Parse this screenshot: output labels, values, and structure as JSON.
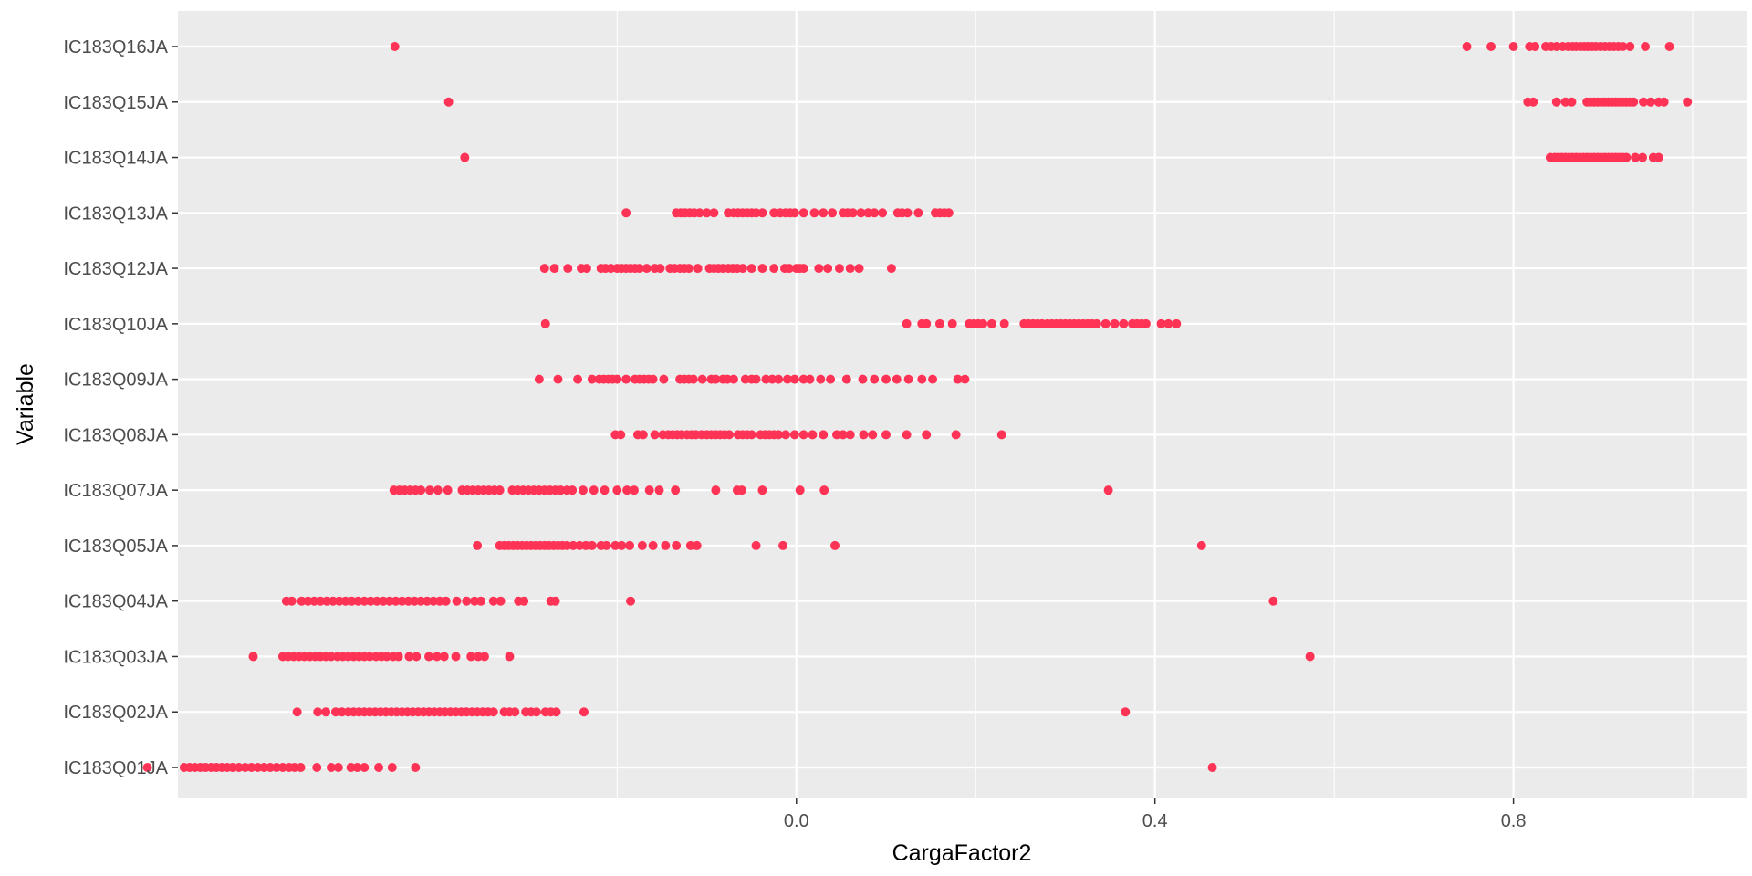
{
  "chart_data": {
    "type": "scatter",
    "title": "",
    "xlabel": "CargaFactor2",
    "ylabel": "Variable",
    "xlim": [
      -0.69,
      1.06
    ],
    "x_ticks": [
      {
        "value": 0.0,
        "label": "0.0"
      },
      {
        "value": 0.4,
        "label": "0.4"
      },
      {
        "value": 0.8,
        "label": "0.8"
      }
    ],
    "x_minor": [
      -0.2,
      0.2,
      0.6,
      1.0
    ],
    "categories": [
      "IC183Q01JA",
      "IC183Q02JA",
      "IC183Q03JA",
      "IC183Q04JA",
      "IC183Q05JA",
      "IC183Q07JA",
      "IC183Q08JA",
      "IC183Q09JA",
      "IC183Q10JA",
      "IC183Q12JA",
      "IC183Q13JA",
      "IC183Q14JA",
      "IC183Q15JA",
      "IC183Q16JA"
    ],
    "grid": true,
    "legend": "none",
    "colors": {
      "point": "#ff3355",
      "panel": "#ebebeb",
      "grid": "#ffffff"
    },
    "points": {
      "IC183Q16JA": [
        -0.448,
        0.748,
        0.775,
        0.8,
        0.818,
        0.824,
        0.836,
        0.842,
        0.848,
        0.855,
        0.861,
        0.866,
        0.87,
        0.875,
        0.879,
        0.883,
        0.888,
        0.892,
        0.897,
        0.902,
        0.907,
        0.912,
        0.917,
        0.922,
        0.93,
        0.947,
        0.974
      ],
      "IC183Q15JA": [
        -0.388,
        0.816,
        0.822,
        0.848,
        0.858,
        0.865,
        0.882,
        0.886,
        0.89,
        0.894,
        0.898,
        0.902,
        0.906,
        0.91,
        0.914,
        0.918,
        0.922,
        0.926,
        0.93,
        0.934,
        0.945,
        0.953,
        0.962,
        0.968,
        0.994
      ],
      "IC183Q14JA": [
        -0.37,
        0.841,
        0.846,
        0.85,
        0.854,
        0.858,
        0.862,
        0.866,
        0.87,
        0.874,
        0.878,
        0.882,
        0.886,
        0.89,
        0.894,
        0.898,
        0.902,
        0.906,
        0.91,
        0.914,
        0.918,
        0.922,
        0.926,
        0.936,
        0.944,
        0.956,
        0.962
      ],
      "IC183Q13JA": [
        -0.19,
        -0.134,
        -0.129,
        -0.124,
        -0.119,
        -0.114,
        -0.108,
        -0.1,
        -0.092,
        -0.076,
        -0.07,
        -0.065,
        -0.06,
        -0.055,
        -0.05,
        -0.045,
        -0.038,
        -0.025,
        -0.018,
        -0.012,
        -0.007,
        -0.002,
        0.008,
        0.02,
        0.03,
        0.04,
        0.052,
        0.057,
        0.063,
        0.072,
        0.08,
        0.087,
        0.096,
        0.113,
        0.118,
        0.124,
        0.136,
        0.155,
        0.16,
        0.165,
        0.17
      ],
      "IC183Q12JA": [
        -0.281,
        -0.27,
        -0.255,
        -0.24,
        -0.234,
        -0.218,
        -0.213,
        -0.207,
        -0.2,
        -0.195,
        -0.19,
        -0.185,
        -0.18,
        -0.175,
        -0.167,
        -0.158,
        -0.152,
        -0.141,
        -0.136,
        -0.13,
        -0.125,
        -0.12,
        -0.11,
        -0.097,
        -0.092,
        -0.087,
        -0.082,
        -0.076,
        -0.071,
        -0.066,
        -0.06,
        -0.05,
        -0.038,
        -0.025,
        -0.013,
        -0.008,
        0.0,
        0.004,
        0.008,
        0.025,
        0.035,
        0.048,
        0.06,
        0.07,
        0.106
      ],
      "IC183Q10JA": [
        -0.28,
        0.123,
        0.14,
        0.145,
        0.16,
        0.174,
        0.193,
        0.198,
        0.203,
        0.208,
        0.218,
        0.232,
        0.254,
        0.259,
        0.264,
        0.269,
        0.274,
        0.28,
        0.285,
        0.29,
        0.295,
        0.3,
        0.305,
        0.31,
        0.315,
        0.32,
        0.325,
        0.33,
        0.335,
        0.345,
        0.355,
        0.365,
        0.375,
        0.38,
        0.385,
        0.39,
        0.407,
        0.415,
        0.424
      ],
      "IC183Q09JA": [
        -0.287,
        -0.266,
        -0.244,
        -0.228,
        -0.22,
        -0.215,
        -0.21,
        -0.205,
        -0.2,
        -0.19,
        -0.18,
        -0.175,
        -0.17,
        -0.165,
        -0.16,
        -0.148,
        -0.13,
        -0.125,
        -0.12,
        -0.115,
        -0.105,
        -0.095,
        -0.09,
        -0.082,
        -0.077,
        -0.07,
        -0.057,
        -0.05,
        -0.045,
        -0.034,
        -0.027,
        -0.02,
        -0.01,
        -0.002,
        0.008,
        0.015,
        0.027,
        0.038,
        0.056,
        0.074,
        0.087,
        0.1,
        0.112,
        0.125,
        0.14,
        0.152,
        0.18,
        0.188
      ],
      "IC183Q08JA": [
        -0.202,
        -0.196,
        -0.177,
        -0.171,
        -0.158,
        -0.149,
        -0.143,
        -0.138,
        -0.133,
        -0.128,
        -0.122,
        -0.117,
        -0.112,
        -0.106,
        -0.1,
        -0.095,
        -0.09,
        -0.085,
        -0.08,
        -0.075,
        -0.065,
        -0.06,
        -0.055,
        -0.05,
        -0.04,
        -0.035,
        -0.03,
        -0.025,
        -0.02,
        -0.012,
        -0.002,
        0.008,
        0.018,
        0.03,
        0.045,
        0.052,
        0.06,
        0.075,
        0.085,
        0.1,
        0.123,
        0.145,
        0.178,
        0.229
      ],
      "IC183Q07JA": [
        -0.449,
        -0.443,
        -0.437,
        -0.431,
        -0.425,
        -0.419,
        -0.409,
        -0.4,
        -0.389,
        -0.373,
        -0.367,
        -0.361,
        -0.355,
        -0.349,
        -0.343,
        -0.337,
        -0.331,
        -0.317,
        -0.311,
        -0.305,
        -0.299,
        -0.293,
        -0.287,
        -0.281,
        -0.275,
        -0.269,
        -0.263,
        -0.256,
        -0.25,
        -0.238,
        -0.226,
        -0.214,
        -0.2,
        -0.189,
        -0.181,
        -0.164,
        -0.153,
        -0.135,
        -0.09,
        -0.066,
        -0.061,
        -0.038,
        0.004,
        0.031,
        0.348
      ],
      "IC183Q05JA": [
        -0.356,
        -0.331,
        -0.326,
        -0.321,
        -0.316,
        -0.311,
        -0.306,
        -0.301,
        -0.296,
        -0.291,
        -0.286,
        -0.281,
        -0.276,
        -0.271,
        -0.266,
        -0.261,
        -0.256,
        -0.249,
        -0.242,
        -0.235,
        -0.228,
        -0.218,
        -0.212,
        -0.202,
        -0.195,
        -0.186,
        -0.172,
        -0.16,
        -0.146,
        -0.134,
        -0.118,
        -0.111,
        -0.045,
        -0.015,
        0.043,
        0.452
      ],
      "IC183Q04JA": [
        -0.569,
        -0.563,
        -0.552,
        -0.545,
        -0.538,
        -0.531,
        -0.524,
        -0.517,
        -0.51,
        -0.503,
        -0.496,
        -0.489,
        -0.482,
        -0.475,
        -0.468,
        -0.461,
        -0.454,
        -0.447,
        -0.44,
        -0.433,
        -0.426,
        -0.419,
        -0.412,
        -0.405,
        -0.398,
        -0.391,
        -0.379,
        -0.368,
        -0.359,
        -0.352,
        -0.338,
        -0.33,
        -0.31,
        -0.304,
        -0.274,
        -0.269,
        -0.185,
        0.532
      ],
      "IC183Q03JA": [
        -0.606,
        -0.573,
        -0.567,
        -0.561,
        -0.555,
        -0.549,
        -0.543,
        -0.537,
        -0.531,
        -0.525,
        -0.519,
        -0.512,
        -0.506,
        -0.5,
        -0.494,
        -0.488,
        -0.482,
        -0.476,
        -0.469,
        -0.463,
        -0.457,
        -0.45,
        -0.444,
        -0.432,
        -0.424,
        -0.41,
        -0.401,
        -0.393,
        -0.38,
        -0.363,
        -0.355,
        -0.348,
        -0.32,
        0.573
      ],
      "IC183Q02JA": [
        -0.557,
        -0.534,
        -0.525,
        -0.514,
        -0.507,
        -0.5,
        -0.494,
        -0.488,
        -0.482,
        -0.476,
        -0.47,
        -0.464,
        -0.458,
        -0.452,
        -0.446,
        -0.44,
        -0.434,
        -0.428,
        -0.422,
        -0.416,
        -0.41,
        -0.404,
        -0.398,
        -0.392,
        -0.386,
        -0.38,
        -0.374,
        -0.368,
        -0.362,
        -0.356,
        -0.35,
        -0.344,
        -0.338,
        -0.326,
        -0.32,
        -0.314,
        -0.302,
        -0.296,
        -0.29,
        -0.28,
        -0.274,
        -0.268,
        -0.237,
        0.367
      ],
      "IC183Q01JA": [
        -0.724,
        -0.683,
        -0.677,
        -0.671,
        -0.665,
        -0.659,
        -0.653,
        -0.647,
        -0.641,
        -0.635,
        -0.629,
        -0.622,
        -0.615,
        -0.608,
        -0.601,
        -0.594,
        -0.587,
        -0.58,
        -0.573,
        -0.566,
        -0.56,
        -0.553,
        -0.535,
        -0.519,
        -0.511,
        -0.497,
        -0.49,
        -0.482,
        -0.466,
        -0.451,
        -0.425,
        0.464
      ]
    }
  }
}
